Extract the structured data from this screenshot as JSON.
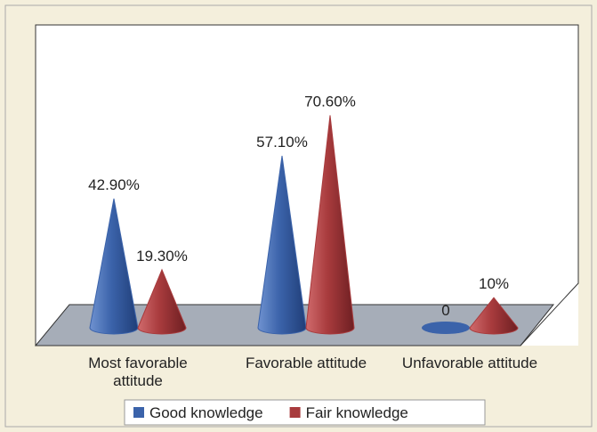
{
  "chart_data": {
    "type": "cone3d",
    "categories": [
      "Most favorable attitude",
      "Favorable attitude",
      "Unfavorable attitude"
    ],
    "series": [
      {
        "name": "Good knowledge",
        "color": "#3b63aa",
        "values": [
          42.9,
          57.1,
          0
        ],
        "value_labels": [
          "42.90%",
          "57.10%",
          "0"
        ]
      },
      {
        "name": "Fair knowledge",
        "color": "#a83b3d",
        "values": [
          19.3,
          70.6,
          10
        ],
        "value_labels": [
          "19.30%",
          "70.60%",
          "10%"
        ]
      }
    ],
    "legend": "bottom"
  }
}
